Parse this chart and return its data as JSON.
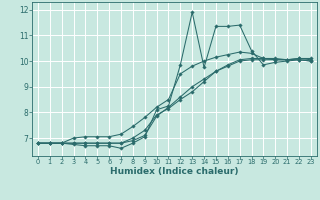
{
  "xlabel": "Humidex (Indice chaleur)",
  "xlim": [
    -0.5,
    23.5
  ],
  "ylim": [
    6.3,
    12.3
  ],
  "yticks": [
    7,
    8,
    9,
    10,
    11,
    12
  ],
  "xticks": [
    0,
    1,
    2,
    3,
    4,
    5,
    6,
    7,
    8,
    9,
    10,
    11,
    12,
    13,
    14,
    15,
    16,
    17,
    18,
    19,
    20,
    21,
    22,
    23
  ],
  "bg_color": "#c8e8e0",
  "grid_color": "#ffffff",
  "line_color": "#2a6b6b",
  "lines": [
    {
      "x": [
        0,
        1,
        2,
        3,
        4,
        5,
        6,
        7,
        8,
        9,
        10,
        11,
        12,
        13,
        14,
        15,
        16,
        17,
        18,
        19,
        20,
        21,
        22,
        23
      ],
      "y": [
        6.8,
        6.8,
        6.8,
        6.75,
        6.7,
        6.7,
        6.7,
        6.6,
        6.8,
        7.05,
        8.1,
        8.25,
        9.85,
        11.9,
        9.75,
        11.35,
        11.35,
        11.4,
        10.4,
        9.85,
        9.95,
        10.0,
        10.05,
        10.0
      ]
    },
    {
      "x": [
        0,
        1,
        2,
        3,
        4,
        5,
        6,
        7,
        8,
        9,
        10,
        11,
        12,
        13,
        14,
        15,
        16,
        17,
        18,
        19,
        20,
        21,
        22,
        23
      ],
      "y": [
        6.8,
        6.8,
        6.8,
        6.8,
        6.8,
        6.8,
        6.8,
        6.8,
        7.0,
        7.3,
        7.9,
        8.15,
        8.5,
        8.8,
        9.2,
        9.6,
        9.8,
        10.0,
        10.05,
        10.05,
        10.05,
        10.05,
        10.1,
        10.05
      ]
    },
    {
      "x": [
        0,
        1,
        2,
        3,
        4,
        5,
        6,
        7,
        8,
        9,
        10,
        11,
        12,
        13,
        14,
        15,
        16,
        17,
        18,
        19,
        20,
        21,
        22,
        23
      ],
      "y": [
        6.8,
        6.8,
        6.8,
        7.0,
        7.05,
        7.05,
        7.05,
        7.15,
        7.45,
        7.8,
        8.2,
        8.5,
        9.5,
        9.8,
        10.0,
        10.15,
        10.25,
        10.35,
        10.3,
        10.1,
        10.05,
        10.05,
        10.05,
        10.0
      ]
    },
    {
      "x": [
        0,
        1,
        2,
        3,
        4,
        5,
        6,
        7,
        8,
        9,
        10,
        11,
        12,
        13,
        14,
        15,
        16,
        17,
        18,
        19,
        20,
        21,
        22,
        23
      ],
      "y": [
        6.8,
        6.8,
        6.8,
        6.8,
        6.8,
        6.8,
        6.8,
        6.8,
        6.9,
        7.1,
        7.85,
        8.2,
        8.6,
        9.0,
        9.3,
        9.6,
        9.85,
        10.05,
        10.1,
        10.1,
        10.1,
        10.05,
        10.1,
        10.1
      ]
    }
  ]
}
